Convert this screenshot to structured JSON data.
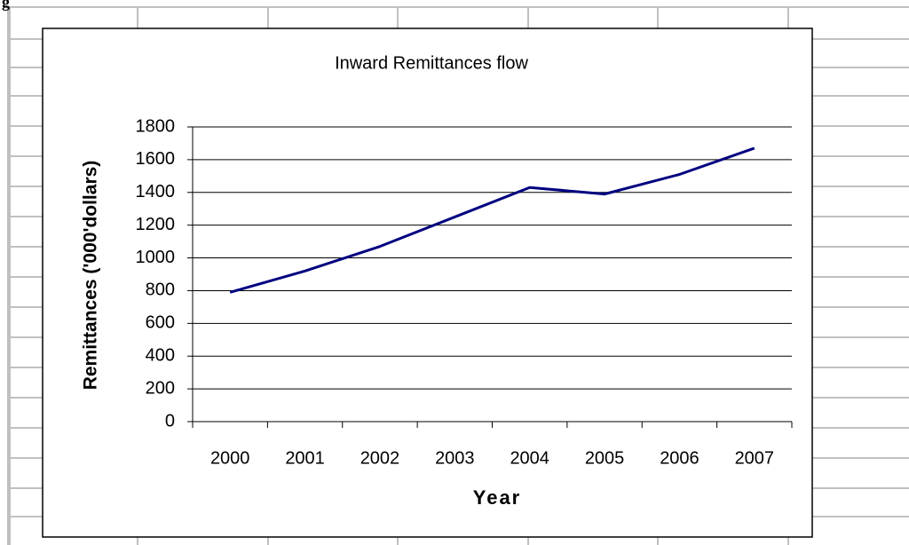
{
  "caption_fragment": "g",
  "chart_data": {
    "type": "line",
    "title": "Inward Remittances flow",
    "x_label": "Year",
    "y_label": "Remittances ('000'dollars)",
    "categories": [
      "2000",
      "2001",
      "2002",
      "2003",
      "2004",
      "2005",
      "2006",
      "2007"
    ],
    "values": [
      790,
      920,
      1070,
      1250,
      1430,
      1390,
      1510,
      1670
    ],
    "color": "#000080",
    "ylim": [
      0,
      1800
    ],
    "yticks": [
      0,
      200,
      400,
      600,
      800,
      1000,
      1200,
      1400,
      1600,
      1800
    ],
    "grid": true
  }
}
